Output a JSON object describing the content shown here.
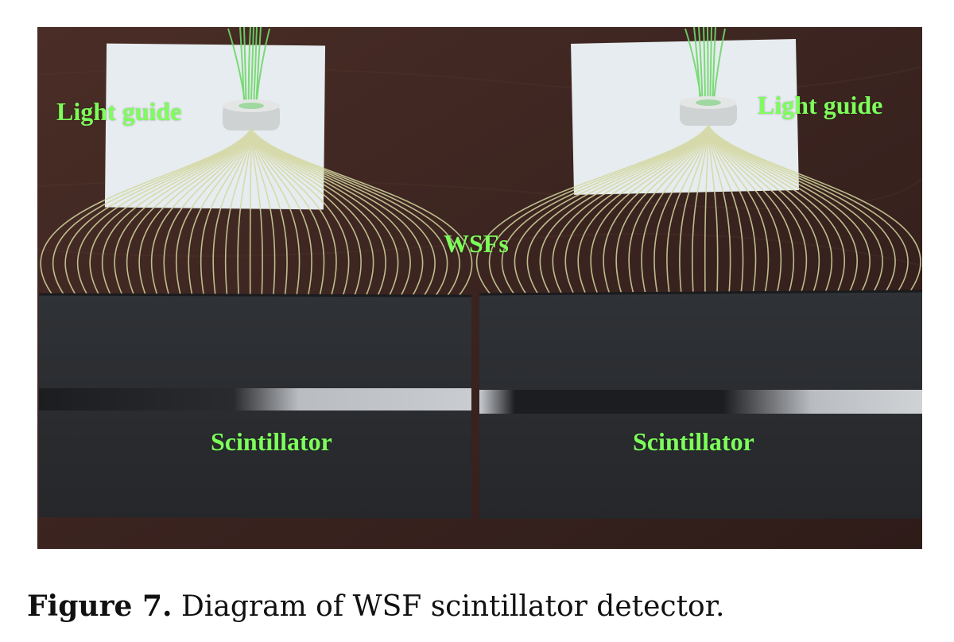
{
  "photo": {
    "labels": {
      "light_guide_left": "Light guide",
      "light_guide_right": "Light guide",
      "wsfs": "WSFs",
      "scintillator_left": "Scintillator",
      "scintillator_right": "Scintillator"
    }
  },
  "caption": {
    "figure_label": "Figure 7.",
    "text": "Diagram of WSF scintillator detector."
  },
  "colors": {
    "label_green": "#7dff5a",
    "wood": "#3a2420",
    "scintillator_wrap": "#2a2c2f",
    "fiber": "#d4d8a0",
    "light_guide_panel": "#e6ecef"
  }
}
